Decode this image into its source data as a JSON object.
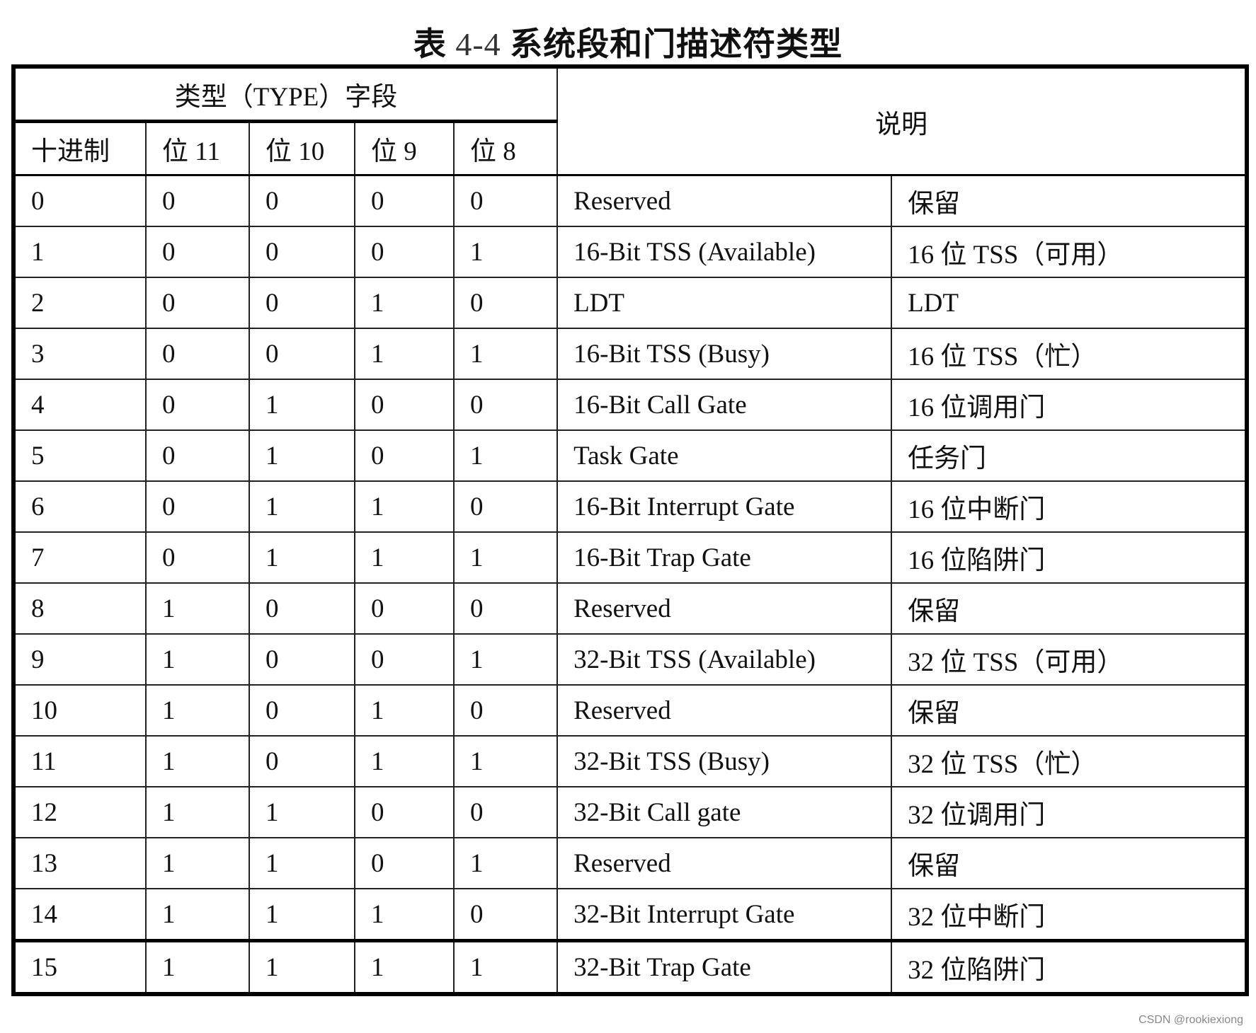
{
  "title": {
    "prefix": "表",
    "number": "4-4",
    "text": "系统段和门描述符类型"
  },
  "header": {
    "type_field": "类型（TYPE）字段",
    "description": "说明",
    "columns": [
      "十进制",
      "位 11",
      "位 10",
      "位 9",
      "位 8"
    ]
  },
  "rows": [
    [
      "0",
      "0",
      "0",
      "0",
      "0",
      "Reserved",
      "保留"
    ],
    [
      "1",
      "0",
      "0",
      "0",
      "1",
      "16-Bit TSS (Available)",
      "16 位  TSS（可用）"
    ],
    [
      "2",
      "0",
      "0",
      "1",
      "0",
      "LDT",
      "LDT"
    ],
    [
      "3",
      "0",
      "0",
      "1",
      "1",
      "16-Bit TSS (Busy)",
      "16 位  TSS（忙）"
    ],
    [
      "4",
      "0",
      "1",
      "0",
      "0",
      "16-Bit Call Gate",
      "16 位调用门"
    ],
    [
      "5",
      "0",
      "1",
      "0",
      "1",
      "Task Gate",
      "任务门"
    ],
    [
      "6",
      "0",
      "1",
      "1",
      "0",
      "16-Bit Interrupt Gate",
      "16 位中断门"
    ],
    [
      "7",
      "0",
      "1",
      "1",
      "1",
      "16-Bit Trap Gate",
      "16 位陷阱门"
    ],
    [
      "8",
      "1",
      "0",
      "0",
      "0",
      "Reserved",
      "保留"
    ],
    [
      "9",
      "1",
      "0",
      "0",
      "1",
      "32-Bit TSS (Available)",
      "32 位 TSS（可用）"
    ],
    [
      "10",
      "1",
      "0",
      "1",
      "0",
      "Reserved",
      "保留"
    ],
    [
      "11",
      "1",
      "0",
      "1",
      "1",
      "32-Bit TSS (Busy)",
      "32 位 TSS（忙）"
    ],
    [
      "12",
      "1",
      "1",
      "0",
      "0",
      "32-Bit Call gate",
      "32 位调用门"
    ],
    [
      "13",
      "1",
      "1",
      "0",
      "1",
      "Reserved",
      "保留"
    ],
    [
      "14",
      "1",
      "1",
      "1",
      "0",
      "32-Bit Interrupt Gate",
      "32 位中断门"
    ],
    [
      "15",
      "1",
      "1",
      "1",
      "1",
      "32-Bit Trap Gate",
      "32 位陷阱门"
    ]
  ],
  "watermark": "CSDN @rookiexiong"
}
